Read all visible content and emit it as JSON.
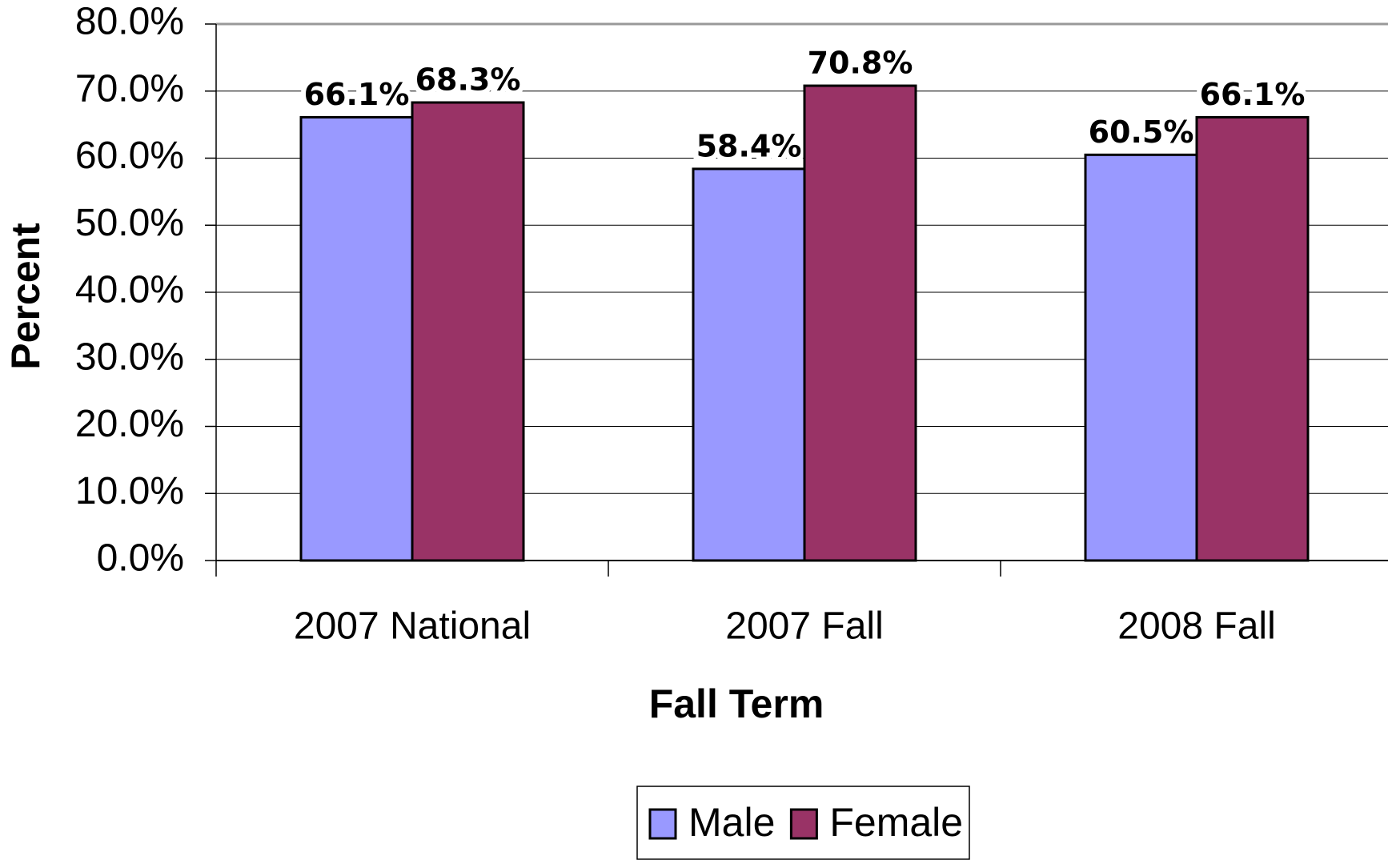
{
  "chart_data": {
    "type": "bar",
    "categories": [
      "2007 National",
      "2007 Fall",
      "2008 Fall"
    ],
    "series": [
      {
        "name": "Male",
        "color": "#9999ff",
        "values": [
          66.1,
          58.4,
          60.5
        ],
        "value_labels": [
          "66.1%",
          "58.4%",
          "60.5%"
        ]
      },
      {
        "name": "Female",
        "color": "#993366",
        "values": [
          68.3,
          70.8,
          66.1
        ],
        "value_labels": [
          "68.3%",
          "70.8%",
          "66.1%"
        ]
      }
    ],
    "x_label": "Fall Term",
    "y_label": "Percent",
    "ylim": [
      0,
      80
    ],
    "yticks": [
      {
        "value": 0,
        "label": "0.0%"
      },
      {
        "value": 10,
        "label": "10.0%"
      },
      {
        "value": 20,
        "label": "20.0%"
      },
      {
        "value": 30,
        "label": "30.0%"
      },
      {
        "value": 40,
        "label": "40.0%"
      },
      {
        "value": 50,
        "label": "50.0%"
      },
      {
        "value": 60,
        "label": "60.0%"
      },
      {
        "value": 70,
        "label": "70.0%"
      },
      {
        "value": 80,
        "label": "80.0%"
      }
    ],
    "grid": true,
    "legend": "bottom"
  }
}
